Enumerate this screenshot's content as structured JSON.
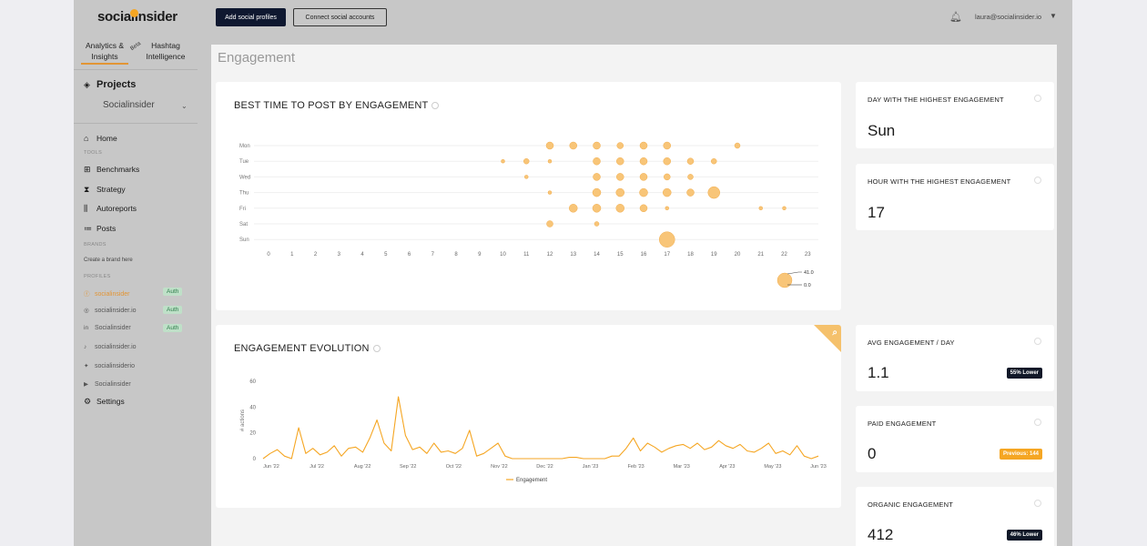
{
  "sidebar": {
    "logo": "socialinsider",
    "tabs": [
      {
        "label": "Analytics & Insights"
      },
      {
        "label": "Hashtag Intelligence"
      }
    ],
    "beta": "Beta",
    "projects_label": "Projects",
    "project_selected": "Socialinsider",
    "home": "Home",
    "tools_section": "TOOLS",
    "tools": [
      "Benchmarks",
      "Strategy",
      "Autoreports",
      "Posts"
    ],
    "brands_section": "BRANDS",
    "create_brand": "Create a brand here",
    "profiles_section": "PROFILES",
    "profiles": [
      {
        "name": "socialinsider",
        "icon": "facebook-icon",
        "auth": "Auth",
        "active": true
      },
      {
        "name": "socialinsider.io",
        "icon": "instagram-icon",
        "auth": "Auth"
      },
      {
        "name": "Socialinsider",
        "icon": "linkedin-icon",
        "auth": "Auth"
      },
      {
        "name": "socialinsider.io",
        "icon": "tiktok-icon"
      },
      {
        "name": "socialinsiderio",
        "icon": "twitter-icon"
      },
      {
        "name": "Socialinsider",
        "icon": "youtube-icon"
      }
    ],
    "settings": "Settings"
  },
  "topbar": {
    "add_profiles": "Add social profiles",
    "connect_accounts": "Connect social accounts",
    "user_email": "laura@socialinsider.io"
  },
  "page": {
    "title": "Engagement"
  },
  "best_time": {
    "title": "BEST TIME TO POST BY ENGAGEMENT",
    "legend_max": "41.0",
    "legend_min": "0.0"
  },
  "evolution": {
    "title": "ENGAGEMENT EVOLUTION"
  },
  "stats": {
    "day_title": "DAY WITH THE HIGHEST ENGAGEMENT",
    "day_value": "Sun",
    "hour_title": "HOUR WITH THE HIGHEST ENGAGEMENT",
    "hour_value": "17",
    "avg_title": "AVG ENGAGEMENT / DAY",
    "avg_value": "1.1",
    "avg_badge": "55% Lower",
    "paid_title": "PAID ENGAGEMENT",
    "paid_value": "0",
    "paid_badge": "Previous: 144",
    "organic_title": "ORGANIC ENGAGEMENT",
    "organic_value": "412",
    "organic_badge": "46% Lower"
  },
  "colors": {
    "accent": "#f5a623",
    "bubble": "#f8c578",
    "dark": "#101828"
  },
  "chart_data": [
    {
      "type": "scatter",
      "title": "BEST TIME TO POST BY ENGAGEMENT",
      "y_categories": [
        "Mon",
        "Tue",
        "Wed",
        "Thu",
        "Fri",
        "Sat",
        "Sun"
      ],
      "x_categories": [
        "0",
        "1",
        "2",
        "3",
        "4",
        "5",
        "6",
        "7",
        "8",
        "9",
        "10",
        "11",
        "12",
        "13",
        "14",
        "15",
        "16",
        "17",
        "18",
        "19",
        "20",
        "21",
        "22",
        "23"
      ],
      "points": [
        {
          "day": "Mon",
          "hour": 12,
          "size": 7
        },
        {
          "day": "Mon",
          "hour": 13,
          "size": 7
        },
        {
          "day": "Mon",
          "hour": 14,
          "size": 7
        },
        {
          "day": "Mon",
          "hour": 15,
          "size": 6
        },
        {
          "day": "Mon",
          "hour": 16,
          "size": 7
        },
        {
          "day": "Mon",
          "hour": 17,
          "size": 7
        },
        {
          "day": "Mon",
          "hour": 20,
          "size": 5
        },
        {
          "day": "Tue",
          "hour": 10,
          "size": 3
        },
        {
          "day": "Tue",
          "hour": 11,
          "size": 5
        },
        {
          "day": "Tue",
          "hour": 12,
          "size": 3
        },
        {
          "day": "Tue",
          "hour": 14,
          "size": 7
        },
        {
          "day": "Tue",
          "hour": 15,
          "size": 7
        },
        {
          "day": "Tue",
          "hour": 16,
          "size": 7
        },
        {
          "day": "Tue",
          "hour": 17,
          "size": 7
        },
        {
          "day": "Tue",
          "hour": 18,
          "size": 6
        },
        {
          "day": "Tue",
          "hour": 19,
          "size": 5
        },
        {
          "day": "Wed",
          "hour": 11,
          "size": 3
        },
        {
          "day": "Wed",
          "hour": 14,
          "size": 7
        },
        {
          "day": "Wed",
          "hour": 15,
          "size": 7
        },
        {
          "day": "Wed",
          "hour": 16,
          "size": 7
        },
        {
          "day": "Wed",
          "hour": 17,
          "size": 6
        },
        {
          "day": "Wed",
          "hour": 18,
          "size": 5
        },
        {
          "day": "Thu",
          "hour": 12,
          "size": 3
        },
        {
          "day": "Thu",
          "hour": 14,
          "size": 8
        },
        {
          "day": "Thu",
          "hour": 15,
          "size": 8
        },
        {
          "day": "Thu",
          "hour": 16,
          "size": 8
        },
        {
          "day": "Thu",
          "hour": 17,
          "size": 8
        },
        {
          "day": "Thu",
          "hour": 18,
          "size": 7
        },
        {
          "day": "Thu",
          "hour": 19,
          "size": 12
        },
        {
          "day": "Fri",
          "hour": 13,
          "size": 8
        },
        {
          "day": "Fri",
          "hour": 14,
          "size": 8
        },
        {
          "day": "Fri",
          "hour": 15,
          "size": 8
        },
        {
          "day": "Fri",
          "hour": 16,
          "size": 7
        },
        {
          "day": "Fri",
          "hour": 17,
          "size": 3
        },
        {
          "day": "Fri",
          "hour": 21,
          "size": 3
        },
        {
          "day": "Fri",
          "hour": 22,
          "size": 3
        },
        {
          "day": "Sat",
          "hour": 12,
          "size": 6
        },
        {
          "day": "Sat",
          "hour": 14,
          "size": 4
        },
        {
          "day": "Sun",
          "hour": 17,
          "size": 16
        }
      ]
    },
    {
      "type": "line",
      "title": "ENGAGEMENT EVOLUTION",
      "ylabel": "# actions",
      "ylim": [
        0,
        60
      ],
      "y_ticks": [
        0,
        20,
        40,
        60
      ],
      "x_ticks": [
        "Jun '22",
        "Jul '22",
        "Aug '22",
        "Sep '22",
        "Oct '22",
        "Nov '22",
        "Dec '22",
        "Jan '23",
        "Feb '23",
        "Mar '23",
        "Apr '23",
        "May '23",
        "Jun '23"
      ],
      "series": [
        {
          "name": "Engagement",
          "values": [
            0,
            4,
            7,
            2,
            0,
            24,
            4,
            8,
            3,
            5,
            10,
            2,
            8,
            9,
            5,
            16,
            30,
            12,
            6,
            48,
            18,
            7,
            9,
            4,
            12,
            5,
            6,
            4,
            8,
            22,
            2,
            4,
            8,
            12,
            2,
            0,
            0,
            0,
            0,
            0,
            0,
            0,
            0,
            1,
            1,
            0,
            0,
            0,
            0,
            2,
            2,
            8,
            16,
            6,
            12,
            9,
            5,
            8,
            10,
            11,
            8,
            12,
            7,
            9,
            14,
            10,
            8,
            11,
            6,
            5,
            8,
            12,
            4,
            6,
            3,
            10,
            2,
            0,
            2
          ]
        }
      ]
    }
  ]
}
